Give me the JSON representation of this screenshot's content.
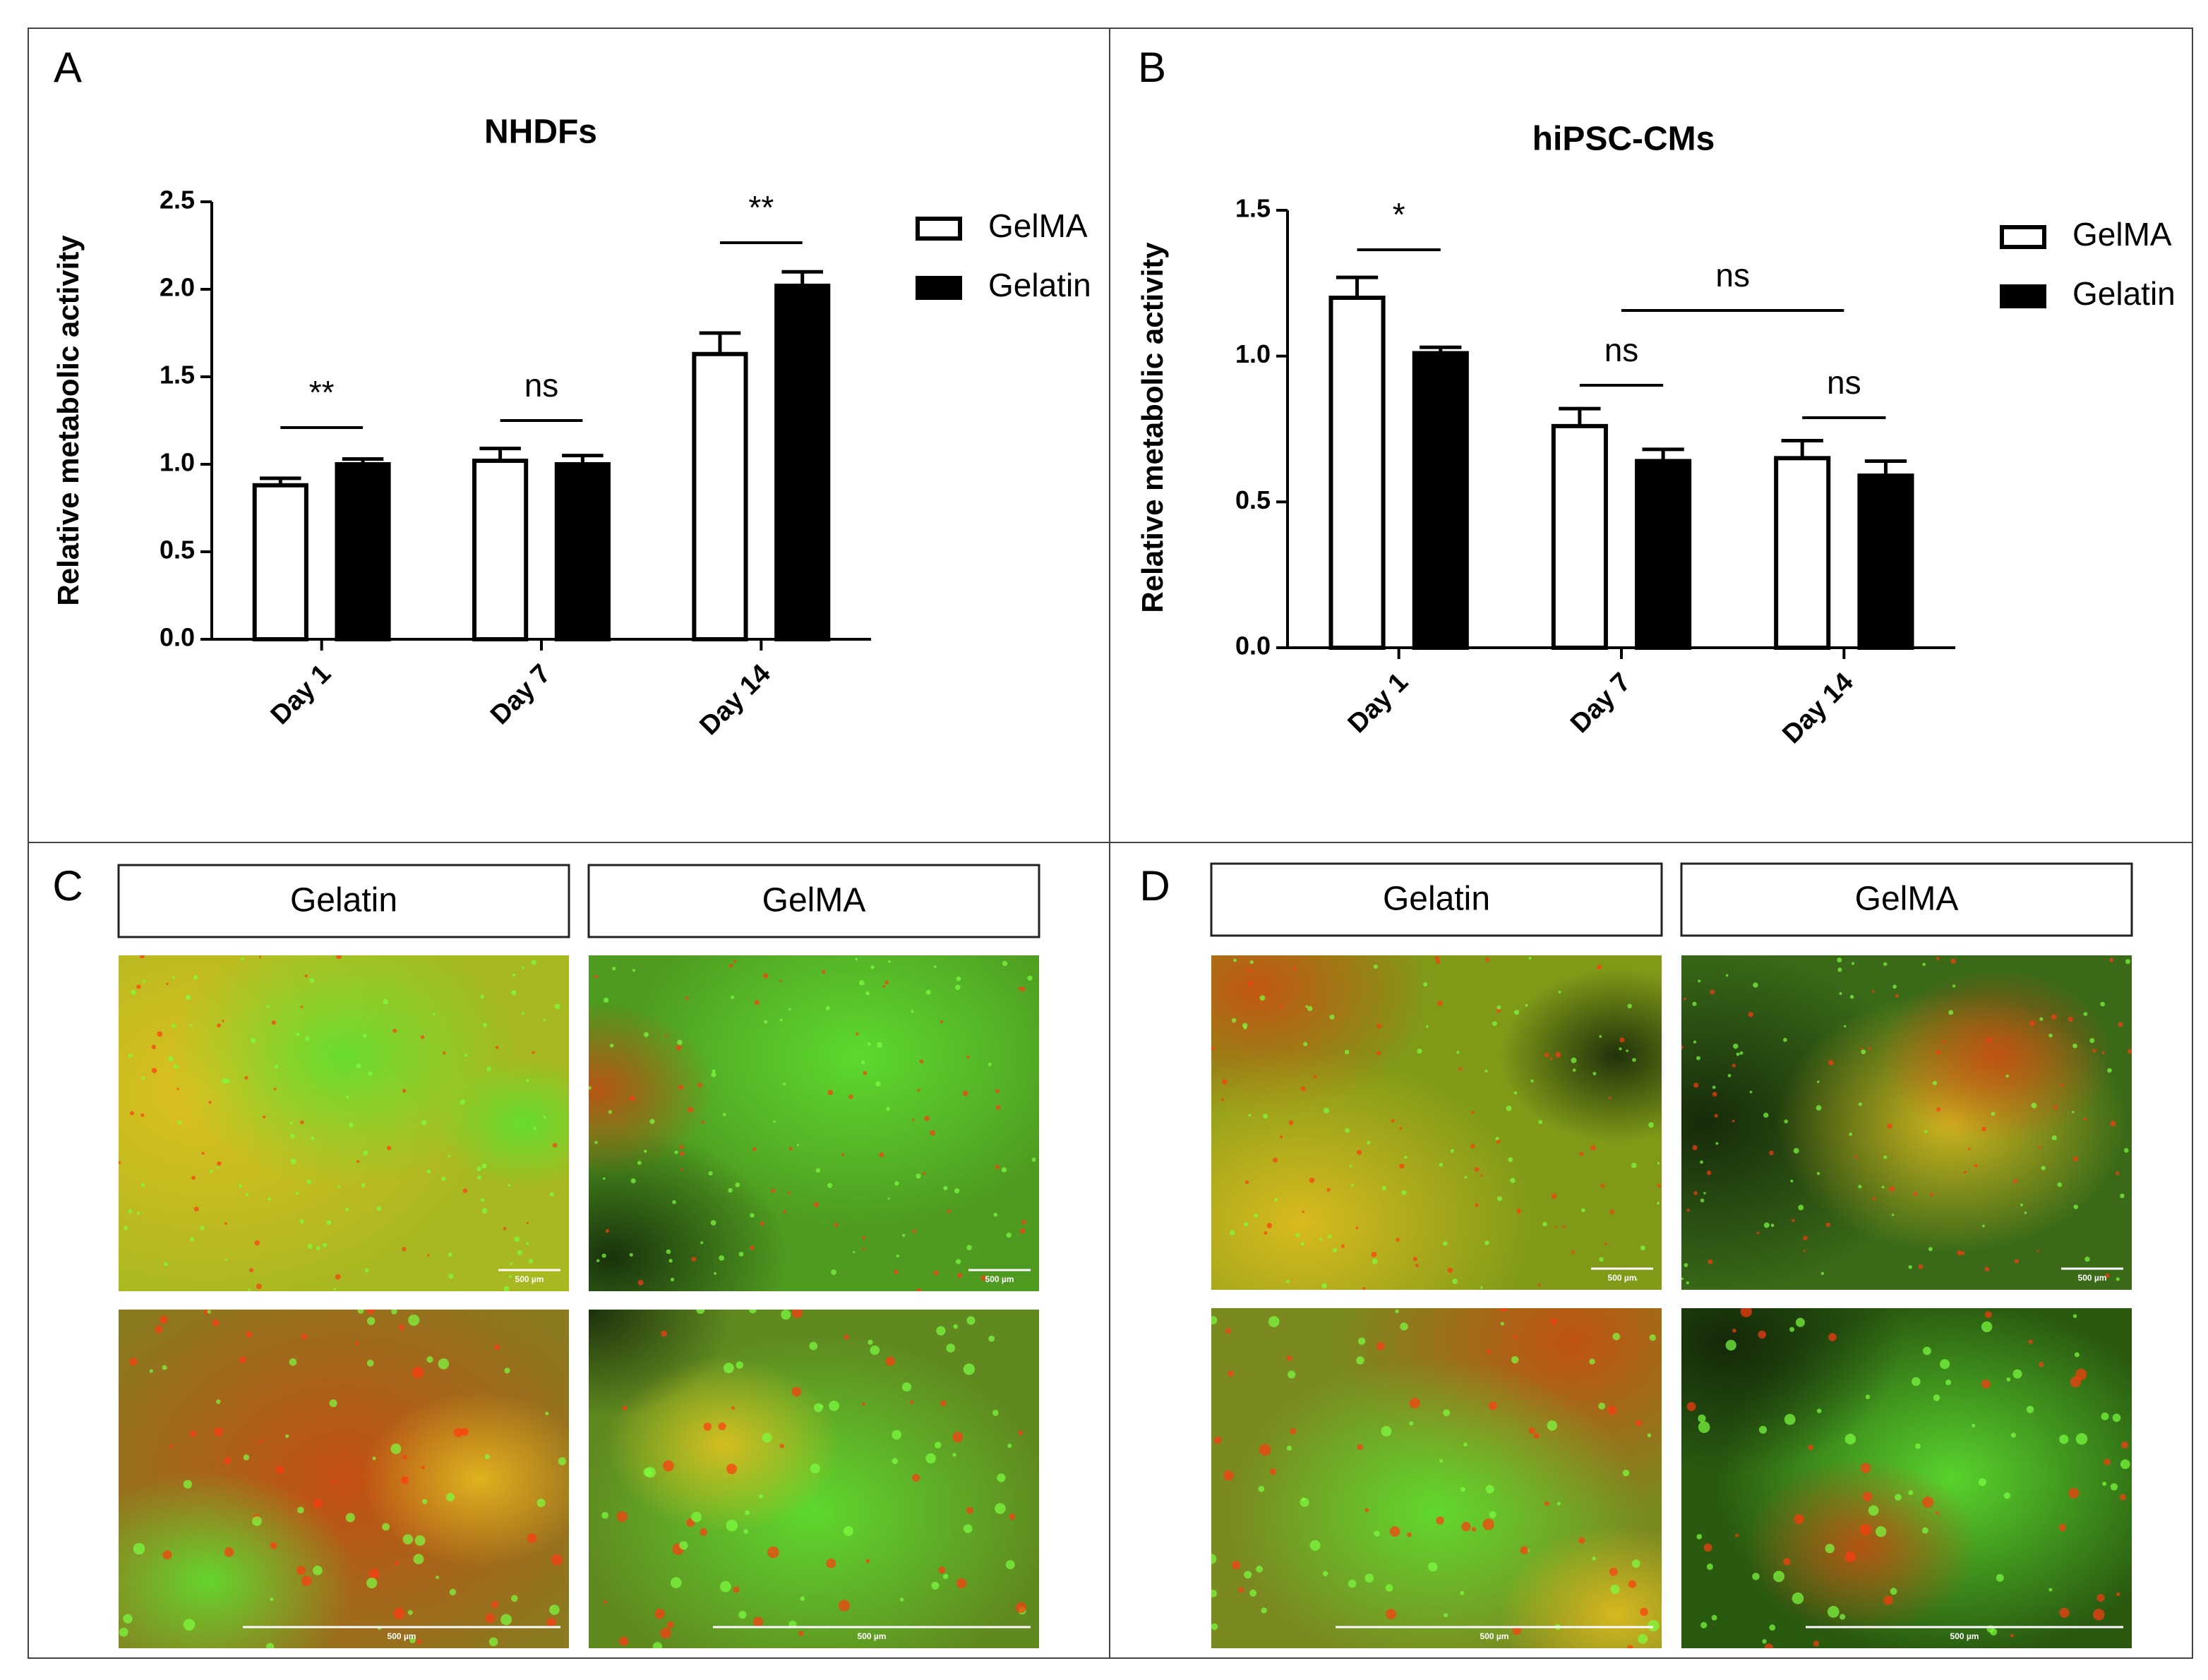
{
  "chart_data": [
    {
      "type": "bar",
      "panel_label": "A",
      "title": "NHDFs",
      "y_label": "Relative metabolic activity",
      "categories": [
        "Day 1",
        "Day 7",
        "Day 14"
      ],
      "series": [
        {
          "name": "GelMA",
          "color": "#ffffff",
          "values": [
            0.88,
            1.02,
            1.63
          ],
          "errors": [
            0.04,
            0.07,
            0.12
          ]
        },
        {
          "name": "Gelatin",
          "color": "#000000",
          "values": [
            1.0,
            1.0,
            2.02
          ],
          "errors": [
            0.03,
            0.05,
            0.08
          ]
        }
      ],
      "ylim": [
        0,
        2.5
      ],
      "yticks": [
        {
          "value": 0,
          "label": "0.0"
        },
        0.5,
        {
          "value": 1,
          "label": "1.0"
        },
        1.5,
        {
          "value": 2,
          "label": "2.0"
        },
        2.5
      ],
      "annotations": [
        "**",
        "ns",
        "**"
      ]
    },
    {
      "type": "bar",
      "panel_label": "B",
      "title": "hiPSC-CMs",
      "y_label": "Relative metabolic activity",
      "categories": [
        "Day 1",
        "Day 7",
        "Day 14"
      ],
      "series": [
        {
          "name": "GelMA",
          "color": "#ffffff",
          "values": [
            1.2,
            0.76,
            0.65
          ],
          "errors": [
            0.07,
            0.06,
            0.06
          ]
        },
        {
          "name": "Gelatin",
          "color": "#000000",
          "values": [
            1.01,
            0.64,
            0.59
          ],
          "errors": [
            0.02,
            0.04,
            0.05
          ]
        }
      ],
      "ylim": [
        0,
        1.5
      ],
      "yticks": [
        {
          "value": 0,
          "label": "0.0"
        },
        0.5,
        {
          "value": 1,
          "label": "1.0"
        },
        1.5
      ],
      "annotations": [
        "*",
        "ns",
        "ns",
        "ns"
      ]
    }
  ],
  "image_panels": [
    {
      "panel_label": "C",
      "headers": [
        "Gelatin",
        "GelMA"
      ]
    },
    {
      "panel_label": "D",
      "headers": [
        "Gelatin",
        "GelMA"
      ]
    }
  ],
  "scale_bar": "500 µm"
}
